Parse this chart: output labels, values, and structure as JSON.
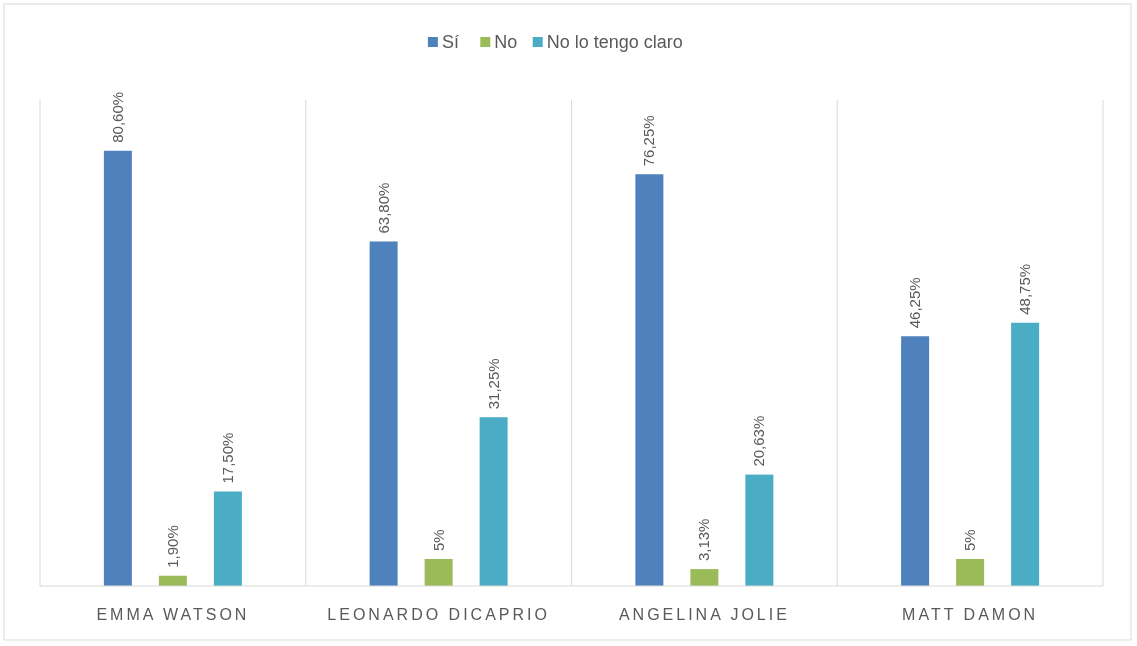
{
  "chart_data": {
    "type": "bar",
    "categories": [
      "EMMA WATSON",
      "LEONARDO DICAPRIO",
      "ANGELINA JOLIE",
      "MATT DAMON"
    ],
    "series": [
      {
        "name": "Sí",
        "color": "#4f81bd",
        "values": [
          80.6,
          63.8,
          76.25,
          46.25
        ],
        "value_labels": [
          "80,60%",
          "63,80%",
          "76,25%",
          "46,25%"
        ]
      },
      {
        "name": "No",
        "color": "#9bbb59",
        "values": [
          1.9,
          5,
          3.13,
          5
        ],
        "value_labels": [
          "1,90%",
          "5%",
          "3,13%",
          "5%"
        ]
      },
      {
        "name": "No lo tengo claro",
        "color": "#4bacc6",
        "values": [
          17.5,
          31.25,
          20.63,
          48.75
        ],
        "value_labels": [
          "17,50%",
          "31,25%",
          "20,63%",
          "48,75%"
        ]
      }
    ],
    "ylim": [
      0,
      90
    ],
    "tick_labels": "x",
    "grid": "x",
    "legend": "top"
  }
}
